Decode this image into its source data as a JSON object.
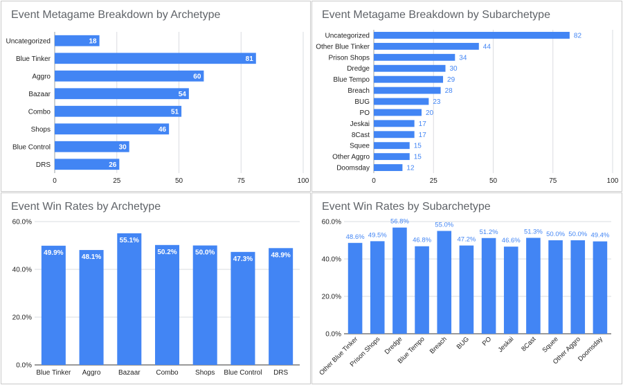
{
  "colors": {
    "bar": "#4285f4",
    "grid": "#dadce0",
    "axis": "#5f6368",
    "label": "#222222"
  },
  "chart_data": [
    {
      "id": "archetype-breakdown",
      "type": "bar",
      "orientation": "horizontal",
      "title": "Event Metagame Breakdown by Archetype",
      "categories": [
        "Uncategorized",
        "Blue Tinker",
        "Aggro",
        "Bazaar",
        "Combo",
        "Shops",
        "Blue Control",
        "DRS"
      ],
      "values": [
        18,
        81,
        60,
        54,
        51,
        46,
        30,
        26
      ],
      "value_labels": [
        "18",
        "81",
        "60",
        "54",
        "51",
        "46",
        "30",
        "26"
      ],
      "xlim": [
        0,
        100
      ],
      "xticks": [
        "0",
        "25",
        "50",
        "75",
        "100"
      ],
      "grid": true,
      "label_position": "inside-end"
    },
    {
      "id": "subarchetype-breakdown",
      "type": "bar",
      "orientation": "horizontal",
      "title": "Event Metagame Breakdown by Subarchetype",
      "categories": [
        "Uncategorized",
        "Other Blue Tinker",
        "Prison Shops",
        "Dredge",
        "Blue Tempo",
        "Breach",
        "BUG",
        "PO",
        "Jeskai",
        "8Cast",
        "Squee",
        "Other Aggro",
        "Doomsday"
      ],
      "values": [
        82,
        44,
        34,
        30,
        29,
        28,
        23,
        20,
        17,
        17,
        15,
        15,
        12
      ],
      "value_labels": [
        "82",
        "44",
        "34",
        "30",
        "29",
        "28",
        "23",
        "20",
        "17",
        "17",
        "15",
        "15",
        "12"
      ],
      "xlim": [
        0,
        100
      ],
      "xticks": [
        "0",
        "25",
        "50",
        "75",
        "100"
      ],
      "grid": true,
      "label_position": "outside-end"
    },
    {
      "id": "archetype-winrates",
      "type": "bar",
      "orientation": "vertical",
      "title": "Event Win Rates by Archetype",
      "categories": [
        "Blue Tinker",
        "Aggro",
        "Bazaar",
        "Combo",
        "Shops",
        "Blue Control",
        "DRS"
      ],
      "values": [
        49.9,
        48.1,
        55.1,
        50.2,
        50.0,
        47.3,
        48.9
      ],
      "value_labels": [
        "49.9%",
        "48.1%",
        "55.1%",
        "50.2%",
        "50.0%",
        "47.3%",
        "48.9%"
      ],
      "ylim": [
        0,
        60
      ],
      "yticks": [
        "0.0%",
        "20.0%",
        "40.0%",
        "60.0%"
      ],
      "grid": true,
      "label_position": "inside-end"
    },
    {
      "id": "subarchetype-winrates",
      "type": "bar",
      "orientation": "vertical",
      "title": "Event Win Rates by Subarchetype",
      "categories": [
        "Other Blue Tinker",
        "Prison Shops",
        "Dredge",
        "Blue Tempo",
        "Breach",
        "BUG",
        "PO",
        "Jeskai",
        "8Cast",
        "Squee",
        "Other Aggro",
        "Doomsday"
      ],
      "values": [
        48.6,
        49.5,
        56.8,
        46.8,
        55.0,
        47.2,
        51.2,
        46.6,
        51.3,
        50.0,
        50.0,
        49.4
      ],
      "value_labels": [
        "48.6%",
        "49.5%",
        "56.8%",
        "46.8%",
        "55.0%",
        "47.2%",
        "51.2%",
        "46.6%",
        "51.3%",
        "50.0%",
        "50.0%",
        "49.4%"
      ],
      "ylim": [
        0,
        60
      ],
      "yticks": [
        "0.0%",
        "20.0%",
        "40.0%",
        "60.0%"
      ],
      "grid": true,
      "label_position": "outside-end",
      "category_labels_rotated": true
    }
  ]
}
